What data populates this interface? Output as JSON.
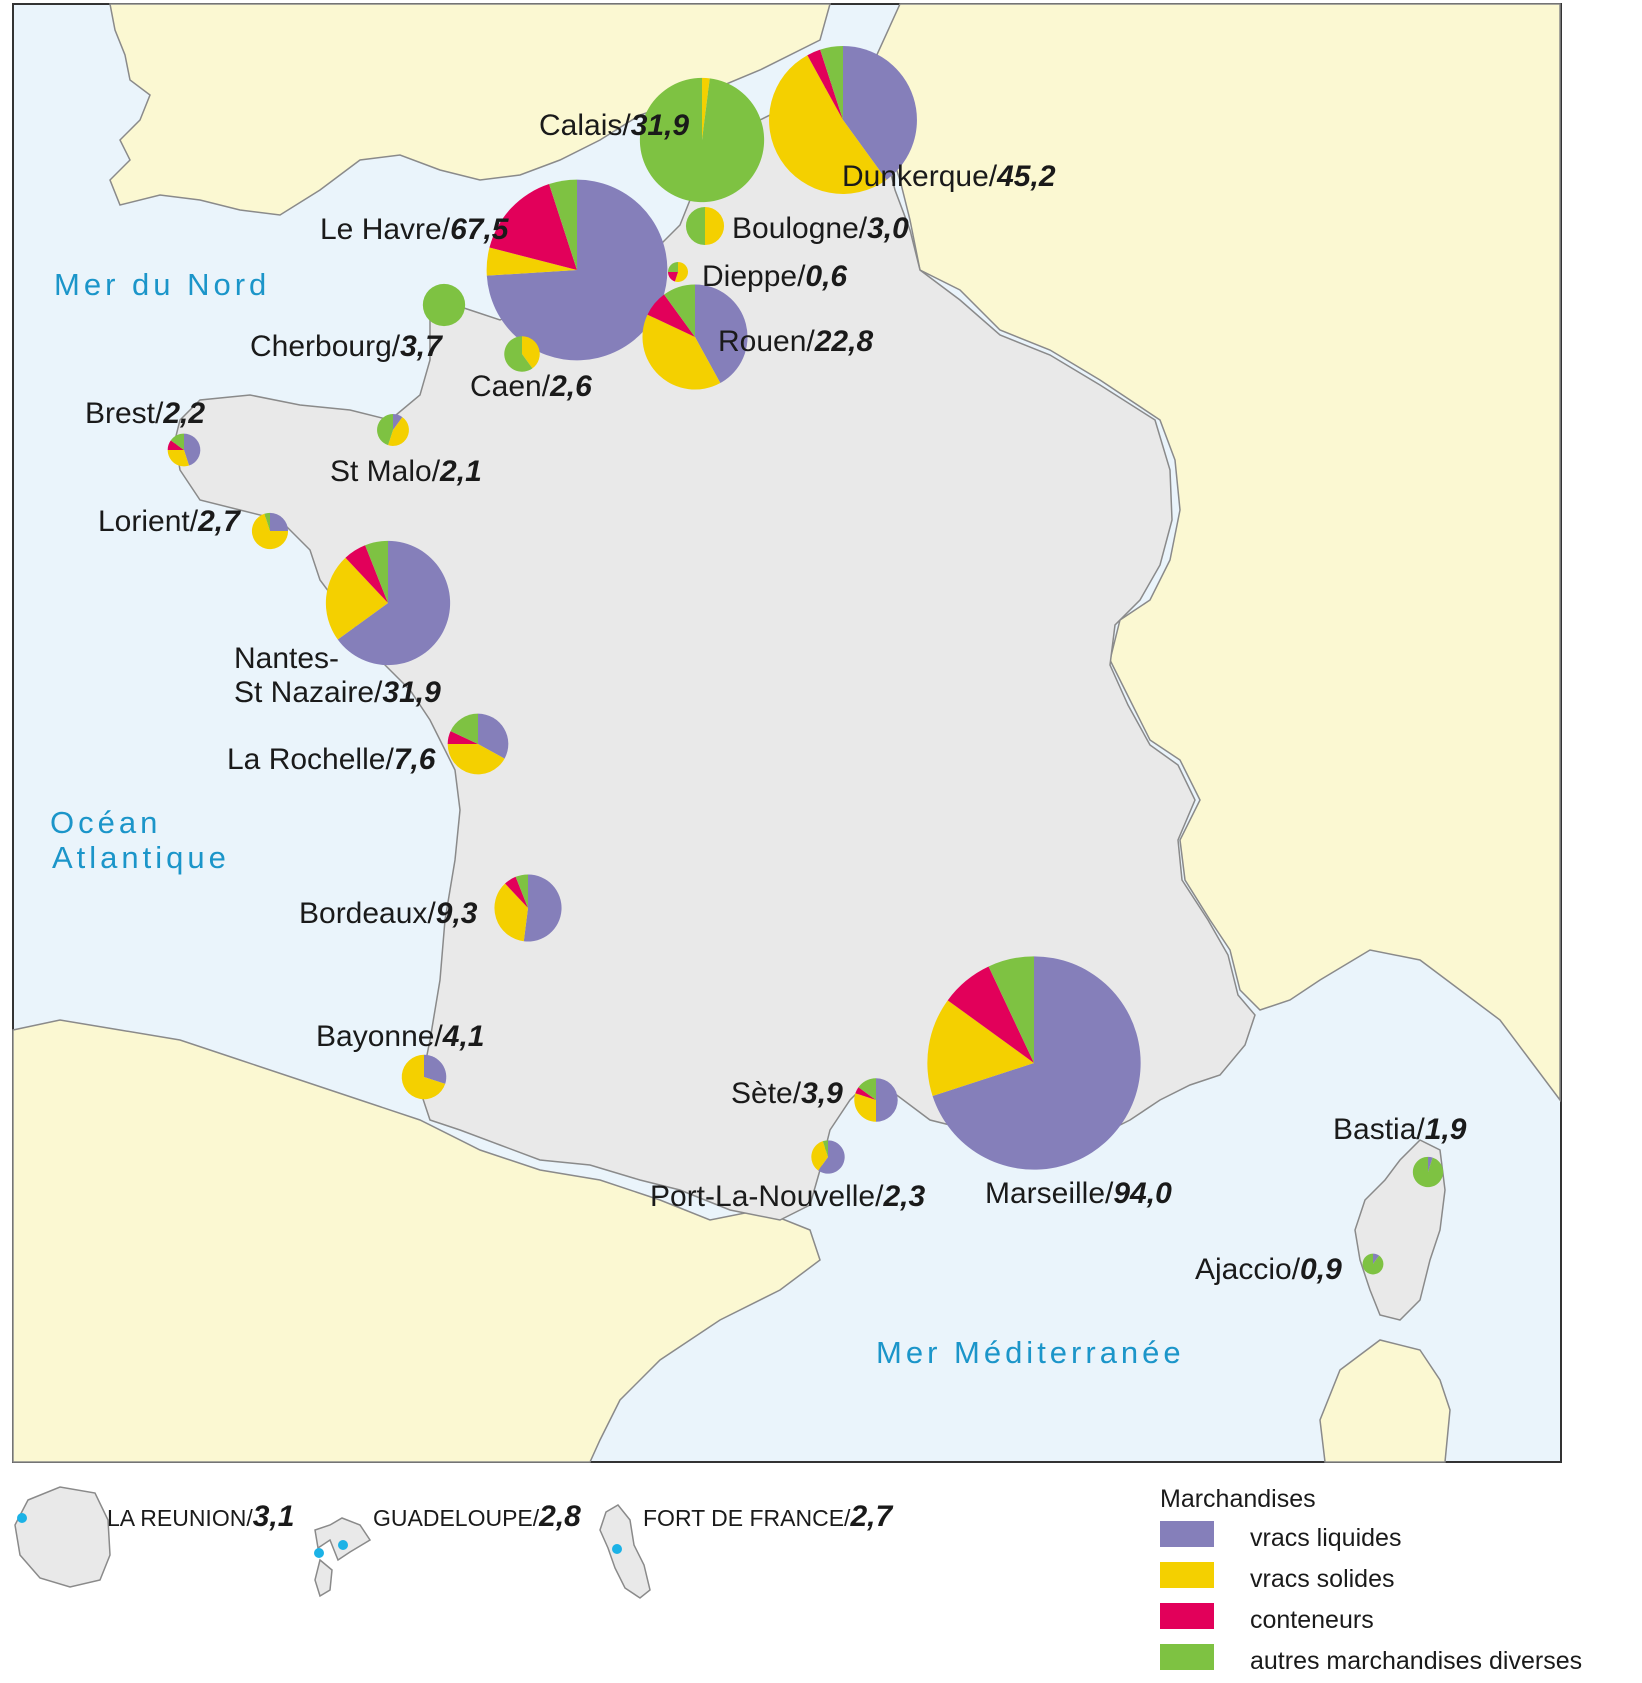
{
  "colors": {
    "vracs_liquides": "#857fba",
    "vracs_solides": "#f4d000",
    "conteneurs": "#e2005a",
    "autres": "#7ec242",
    "sea": "#eaf4fb",
    "france": "#e9e9e9",
    "neighbors": "#fbf8d2",
    "border": "#8a8a8a",
    "sea_label": "#1b95c9"
  },
  "seas": {
    "north": "Mer du Nord",
    "atlantic_1": "Océan",
    "atlantic_2": "Atlantique",
    "med": "Mer Méditerranée"
  },
  "ports": [
    {
      "id": "calais",
      "name": "Calais/",
      "value": "31,9",
      "shares": [
        0,
        0.02,
        0,
        0.98
      ]
    },
    {
      "id": "dunkerque",
      "name": "Dunkerque/",
      "value": "45,2",
      "shares": [
        0.4,
        0.52,
        0.03,
        0.05
      ]
    },
    {
      "id": "lehavre",
      "name": "Le Havre/",
      "value": "67,5",
      "shares": [
        0.74,
        0.05,
        0.16,
        0.05
      ]
    },
    {
      "id": "boulogne",
      "name": "Boulogne/",
      "value": "3,0",
      "shares": [
        0,
        0.5,
        0,
        0.5
      ]
    },
    {
      "id": "dieppe",
      "name": "Dieppe/",
      "value": "0,6",
      "shares": [
        0,
        0.55,
        0.2,
        0.25
      ]
    },
    {
      "id": "rouen",
      "name": "Rouen/",
      "value": "22,8",
      "shares": [
        0.42,
        0.4,
        0.08,
        0.1
      ]
    },
    {
      "id": "cherbourg",
      "name": "Cherbourg/",
      "value": "3,7",
      "shares": [
        0,
        0,
        0,
        1
      ]
    },
    {
      "id": "caen",
      "name": "Caen/",
      "value": "2,6",
      "shares": [
        0,
        0.4,
        0,
        0.6
      ]
    },
    {
      "id": "brest",
      "name": "Brest/",
      "value": "2,2",
      "shares": [
        0.45,
        0.3,
        0.1,
        0.15
      ]
    },
    {
      "id": "stmalo",
      "name": "St Malo/",
      "value": "2,1",
      "shares": [
        0.1,
        0.45,
        0,
        0.45
      ]
    },
    {
      "id": "lorient",
      "name": "Lorient/",
      "value": "2,7",
      "shares": [
        0.25,
        0.7,
        0,
        0.05
      ]
    },
    {
      "id": "nantes",
      "name_1": "Nantes-",
      "name_2": "St Nazaire/",
      "value": "31,9",
      "shares": [
        0.65,
        0.23,
        0.06,
        0.06
      ]
    },
    {
      "id": "larochelle",
      "name": "La Rochelle/",
      "value": "7,6",
      "shares": [
        0.33,
        0.42,
        0.07,
        0.18
      ]
    },
    {
      "id": "bordeaux",
      "name": "Bordeaux/",
      "value": "9,3",
      "shares": [
        0.52,
        0.36,
        0.06,
        0.06
      ]
    },
    {
      "id": "bayonne",
      "name": "Bayonne/",
      "value": "4,1",
      "shares": [
        0.3,
        0.7,
        0,
        0
      ]
    },
    {
      "id": "sete",
      "name": "Sète/",
      "value": "3,9",
      "shares": [
        0.5,
        0.3,
        0.05,
        0.15
      ]
    },
    {
      "id": "portlanouvelle",
      "name": "Port-La-Nouvelle/",
      "value": "2,3",
      "shares": [
        0.6,
        0.35,
        0,
        0.05
      ]
    },
    {
      "id": "marseille",
      "name": "Marseille/",
      "value": "94,0",
      "shares": [
        0.7,
        0.15,
        0.08,
        0.07
      ]
    },
    {
      "id": "bastia",
      "name": "Bastia/",
      "value": "1,9",
      "shares": [
        0.05,
        0,
        0,
        0.95
      ]
    },
    {
      "id": "ajaccio",
      "name": "Ajaccio/",
      "value": "0,9",
      "shares": [
        0.1,
        0,
        0,
        0.9
      ]
    }
  ],
  "dom": [
    {
      "name": "LA REUNION/",
      "value": "3,1"
    },
    {
      "name": "GUADELOUPE/",
      "value": "2,8"
    },
    {
      "name": "FORT DE FRANCE/",
      "value": "2,7"
    }
  ],
  "legend": {
    "title": "Marchandises",
    "items": [
      "vracs liquides",
      "vracs solides",
      "conteneurs",
      "autres marchandises diverses"
    ]
  }
}
